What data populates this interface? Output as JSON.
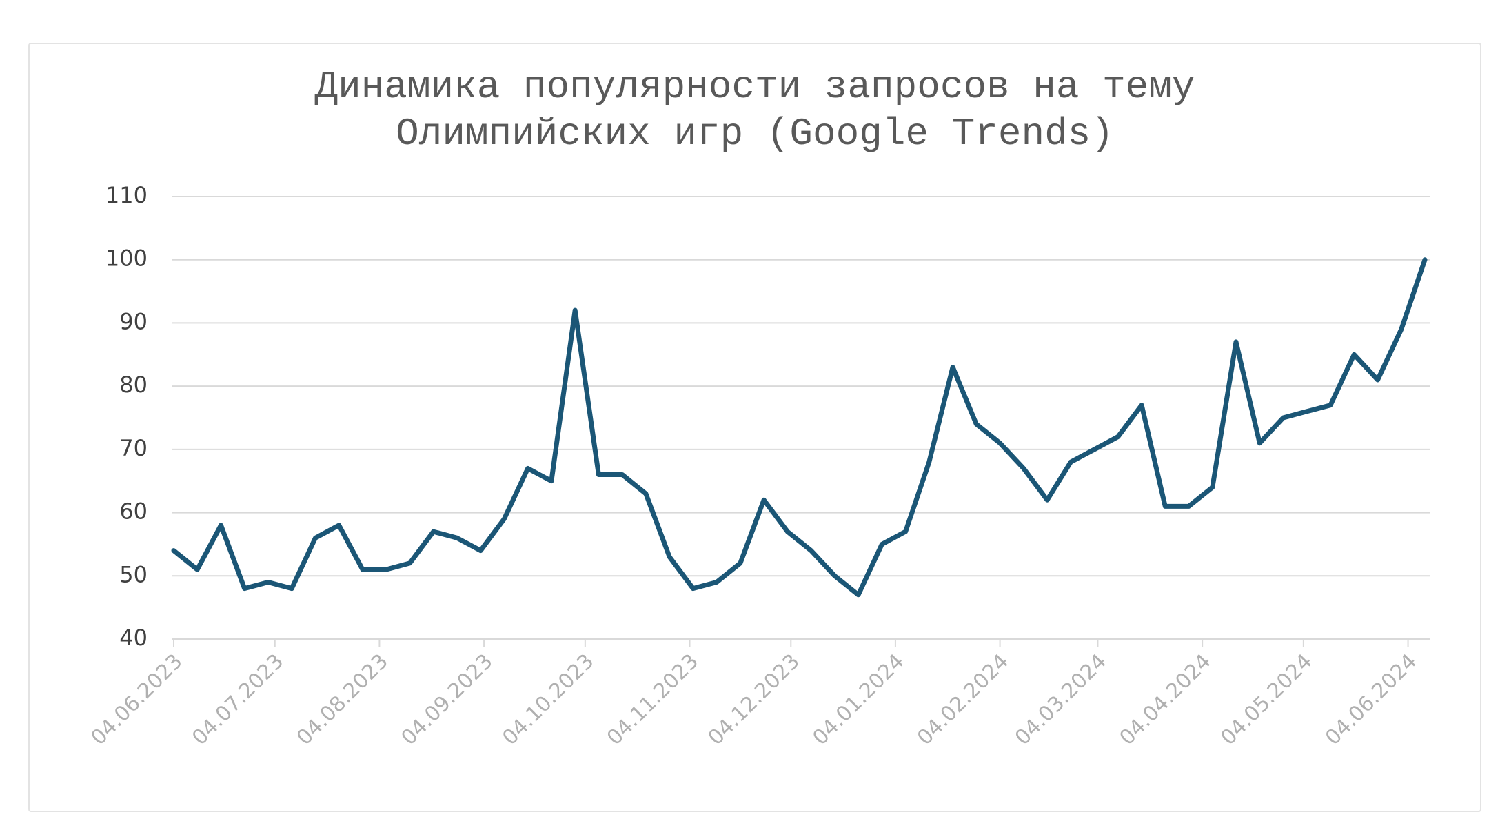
{
  "chart_data": {
    "type": "line",
    "title": "Динамика популярности запросов на тему Олимпийских игр (Google Trends)",
    "x": [
      "04.06.2023",
      "11.06.2023",
      "18.06.2023",
      "25.06.2023",
      "02.07.2023",
      "09.07.2023",
      "16.07.2023",
      "23.07.2023",
      "30.07.2023",
      "06.08.2023",
      "13.08.2023",
      "20.08.2023",
      "27.08.2023",
      "03.09.2023",
      "10.09.2023",
      "17.09.2023",
      "24.09.2023",
      "01.10.2023",
      "08.10.2023",
      "15.10.2023",
      "22.10.2023",
      "29.10.2023",
      "05.11.2023",
      "12.11.2023",
      "19.11.2023",
      "26.11.2023",
      "03.12.2023",
      "10.12.2023",
      "17.12.2023",
      "24.12.2023",
      "31.12.2023",
      "07.01.2024",
      "14.01.2024",
      "21.01.2024",
      "28.01.2024",
      "04.02.2024",
      "11.02.2024",
      "18.02.2024",
      "25.02.2024",
      "03.03.2024",
      "10.03.2024",
      "17.03.2024",
      "24.03.2024",
      "31.03.2024",
      "07.04.2024",
      "14.04.2024",
      "21.04.2024",
      "28.04.2024",
      "05.05.2024",
      "12.05.2024",
      "19.05.2024",
      "26.05.2024",
      "02.06.2024",
      "09.06.2024"
    ],
    "series": [
      {
        "color": "#1b5676",
        "values": [
          54,
          51,
          58,
          48,
          49,
          48,
          56,
          58,
          51,
          51,
          52,
          57,
          56,
          54,
          59,
          67,
          65,
          92,
          66,
          66,
          63,
          53,
          48,
          49,
          52,
          62,
          57,
          54,
          50,
          47,
          55,
          57,
          68,
          83,
          74,
          71,
          67,
          62,
          68,
          70,
          72,
          77,
          61,
          61,
          64,
          87,
          71,
          75,
          76,
          77,
          85,
          81,
          89,
          100
        ]
      }
    ],
    "xlim": [
      "04.06.2023",
      "09.06.2024"
    ],
    "xticks": [
      "04.06.2023",
      "04.07.2023",
      "04.08.2023",
      "04.09.2023",
      "04.10.2023",
      "04.11.2023",
      "04.12.2023",
      "04.01.2024",
      "04.02.2024",
      "04.03.2024",
      "04.04.2024",
      "04.05.2024",
      "04.06.2024"
    ],
    "ylim": [
      40,
      110
    ],
    "yticks": [
      40,
      50,
      60,
      70,
      80,
      90,
      100,
      110
    ],
    "grid": true
  }
}
